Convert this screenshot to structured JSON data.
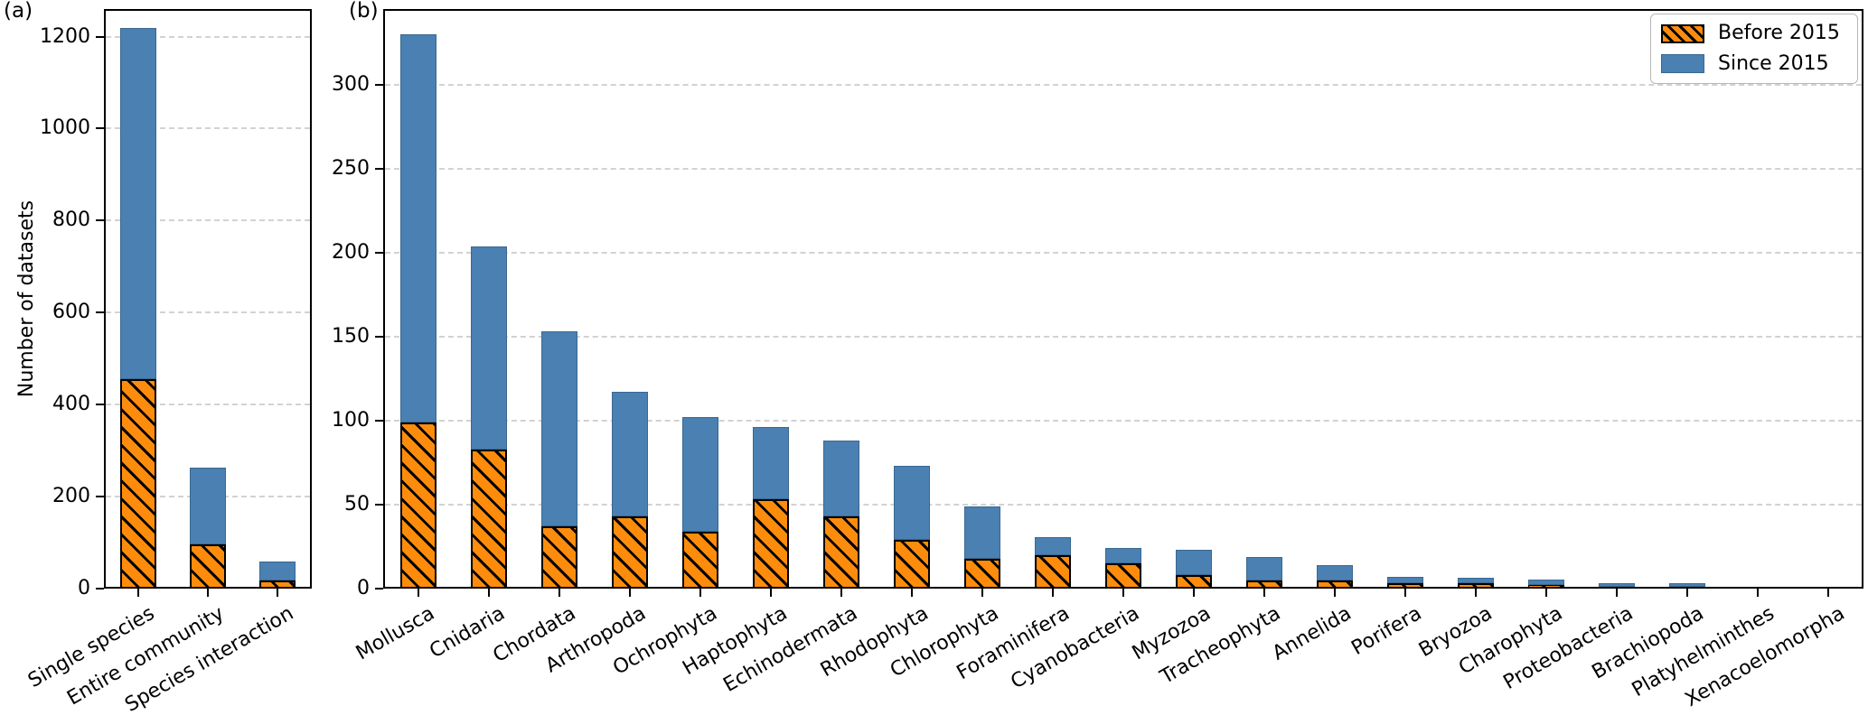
{
  "figure": {
    "panel_a_tag": "(a)",
    "panel_b_tag": "(b)",
    "ylabel": "Number of datasets"
  },
  "legend": {
    "position": "upper-right",
    "items": [
      {
        "label": "Before 2015",
        "swatch": "orange-hatched-swatch"
      },
      {
        "label": "Since 2015",
        "swatch": "blue-solid-swatch"
      }
    ]
  },
  "colors": {
    "before_2015": "#fd8c0d",
    "since_2015": "#4a80b2",
    "since_edge": "#3a6890",
    "hatch": "#000000",
    "grid": "#d2d2d2",
    "axis": "#000000"
  },
  "chart_data": [
    {
      "panel": "a",
      "type": "bar",
      "stacked": true,
      "orientation": "vertical",
      "categories": [
        "Single species",
        "Entire community",
        "Species interaction"
      ],
      "series": [
        {
          "name": "Before 2015",
          "values": [
            455,
            97,
            18
          ]
        },
        {
          "name": "Since 2015",
          "values": [
            763,
            166,
            42
          ]
        }
      ],
      "totals": [
        1218,
        263,
        60
      ],
      "ylabel": "Number of datasets",
      "xlabel": "",
      "yticks": [
        0,
        200,
        400,
        600,
        800,
        1000,
        1200
      ],
      "ylim": [
        0,
        1260
      ],
      "grid": "horizontal-dashed",
      "xtick_rotation_deg": 30
    },
    {
      "panel": "b",
      "type": "bar",
      "stacked": true,
      "orientation": "vertical",
      "categories": [
        "Mollusca",
        "Cnidaria",
        "Chordata",
        "Arthropoda",
        "Ochrophyta",
        "Haptophyta",
        "Echinodermata",
        "Rhodophyta",
        "Chlorophyta",
        "Foraminifera",
        "Cyanobacteria",
        "Myzozoa",
        "Tracheophyta",
        "Annelida",
        "Porifera",
        "Bryozoa",
        "Charophyta",
        "Proteobacteria",
        "Brachiopoda",
        "Platyhelminthes",
        "Xenacoelomorpha"
      ],
      "series": [
        {
          "name": "Before 2015",
          "values": [
            99,
            83,
            37,
            43,
            34,
            53,
            43,
            29,
            18,
            20,
            15,
            8,
            5,
            5,
            3,
            3,
            2,
            1,
            1,
            0,
            1
          ]
        },
        {
          "name": "Since 2015",
          "values": [
            231,
            121,
            116,
            74,
            68,
            43,
            45,
            44,
            31,
            11,
            9,
            15,
            14,
            9,
            4,
            3,
            3,
            2,
            2,
            1,
            0
          ]
        }
      ],
      "totals": [
        330,
        204,
        153,
        117,
        102,
        96,
        88,
        73,
        49,
        31,
        24,
        23,
        19,
        14,
        7,
        6,
        5,
        3,
        3,
        1,
        1
      ],
      "ylabel": "",
      "xlabel": "",
      "yticks": [
        0,
        50,
        100,
        150,
        200,
        250,
        300
      ],
      "ylim": [
        0,
        345
      ],
      "grid": "horizontal-dashed",
      "xtick_rotation_deg": 30,
      "legend_position": "upper-right"
    }
  ]
}
